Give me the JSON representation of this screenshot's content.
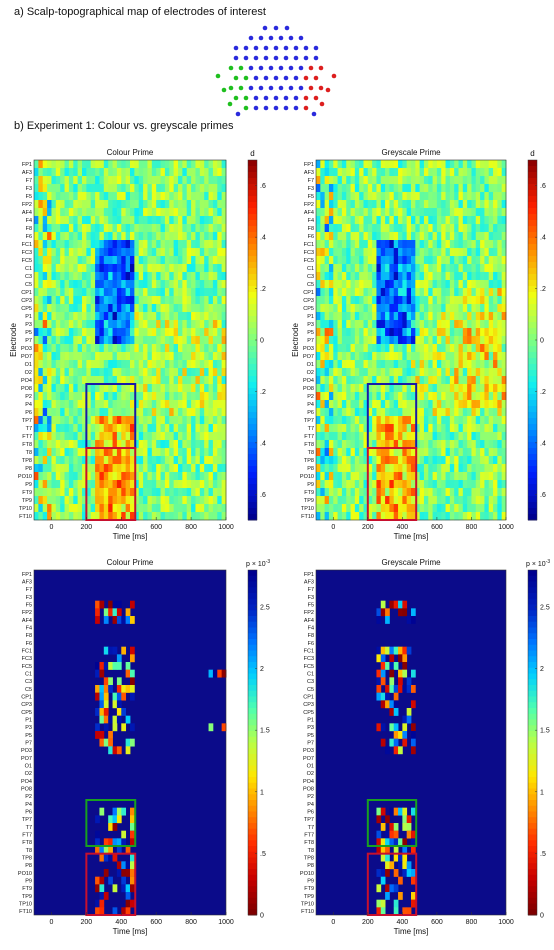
{
  "figure": {
    "section_a_title": "a) Scalp-topographical map of electrodes of interest",
    "section_b_title": "b) Experiment 1: Colour vs. greyscale primes",
    "palette": {
      "parula": [
        "#352a87",
        "#0363e1",
        "#1485d4",
        "#06a7c6",
        "#38b99e",
        "#92bf73",
        "#d9ba56",
        "#fcce2e",
        "#f9fb0e"
      ],
      "hot_p": [
        "#7f0000",
        "#c80000",
        "#ff2b00",
        "#ff8a00",
        "#ffe600",
        "#b8ff47",
        "#4dffb0",
        "#00cfff",
        "#0071ff",
        "#001fbf",
        "#00008f"
      ],
      "effect": [
        "#00008f",
        "#0020ff",
        "#0090ff",
        "#10f0ef",
        "#80ff80",
        "#f0ff10",
        "#ff9000",
        "#ff2000",
        "#8f0000"
      ],
      "electrode_interest_colors": {
        "default": "#2a2adc",
        "left": "#1fbf1f",
        "right": "#dd1f1f"
      }
    }
  },
  "chart_data": [
    {
      "type": "heatmap",
      "title": "Colour Prime",
      "xlabel": "Time [ms]",
      "ylabel": "Electrode",
      "x_ticks": [
        "0",
        "200",
        "400",
        "600",
        "800",
        "1000"
      ],
      "x_range": [
        -100,
        1000
      ],
      "electrode_labels": [
        "FP1",
        "AF3",
        "F7",
        "F3",
        "F5",
        "FP2",
        "AF4",
        "F4",
        "F8",
        "F6",
        "FC1",
        "FC3",
        "FC5",
        "C1",
        "C3",
        "C5",
        "CP1",
        "CP3",
        "CP5",
        "P1",
        "P3",
        "P5",
        "P7",
        "PO3",
        "PO7",
        "O1",
        "O2",
        "PO4",
        "PO8",
        "P2",
        "P4",
        "P6",
        "TP7",
        "T7",
        "FT7",
        "FT8",
        "T8",
        "TP8",
        "P8",
        "PO10",
        "P9",
        "FT9",
        "TP9",
        "TP10",
        "FT10"
      ],
      "colorbar_title": "d",
      "colorbar_ticks": [
        ".6",
        ".4",
        ".2",
        "0",
        ".2",
        ".4",
        ".6"
      ],
      "colorbar_range": [
        -0.7,
        0.7
      ],
      "roi_boxes": [
        {
          "color": "blue",
          "time_ms": [
            200,
            480
          ],
          "rows": "parietal-occipital"
        },
        {
          "color": "red",
          "time_ms": [
            200,
            480
          ],
          "rows": "posterior-temporal"
        }
      ]
    },
    {
      "type": "heatmap",
      "title": "Greyscale Prime",
      "xlabel": "Time [ms]",
      "ylabel": "Electrode",
      "x_ticks": [
        "0",
        "200",
        "400",
        "600",
        "800",
        "1000"
      ],
      "x_range": [
        -100,
        1000
      ],
      "colorbar_title": "d",
      "colorbar_ticks": [
        ".6",
        ".4",
        ".2",
        "0",
        ".2",
        ".4",
        ".6"
      ],
      "colorbar_range": [
        -0.7,
        0.7
      ],
      "roi_boxes": [
        {
          "color": "blue",
          "time_ms": [
            200,
            480
          ]
        },
        {
          "color": "red",
          "time_ms": [
            200,
            480
          ]
        }
      ]
    },
    {
      "type": "heatmap",
      "title": "Colour Prime",
      "xlabel": "Time [ms]",
      "x_ticks": [
        "0",
        "200",
        "400",
        "600",
        "800",
        "1000"
      ],
      "x_range": [
        -100,
        1000
      ],
      "colorbar_title": "p",
      "colorbar_exponent": "× 10",
      "colorbar_exponent_sup": "-3",
      "colorbar_ticks": [
        "2.5",
        "2",
        "1.5",
        "1",
        ".5",
        "0"
      ],
      "colorbar_range": [
        0,
        2.8
      ],
      "roi_boxes": [
        {
          "color": "green",
          "time_ms": [
            200,
            480
          ]
        },
        {
          "color": "red",
          "time_ms": [
            200,
            480
          ]
        }
      ]
    },
    {
      "type": "heatmap",
      "title": "Greyscale Prime",
      "xlabel": "Time [ms]",
      "x_ticks": [
        "0",
        "200",
        "400",
        "600",
        "800",
        "1000"
      ],
      "x_range": [
        -100,
        1000
      ],
      "colorbar_title": "p",
      "colorbar_exponent": "× 10",
      "colorbar_exponent_sup": "-3",
      "colorbar_ticks": [
        "2.5",
        "2",
        "1.5",
        "1",
        ".5",
        "0"
      ],
      "colorbar_range": [
        0,
        2.8
      ],
      "roi_boxes": [
        {
          "color": "green",
          "time_ms": [
            200,
            480
          ]
        },
        {
          "color": "red",
          "time_ms": [
            200,
            480
          ]
        }
      ]
    }
  ]
}
